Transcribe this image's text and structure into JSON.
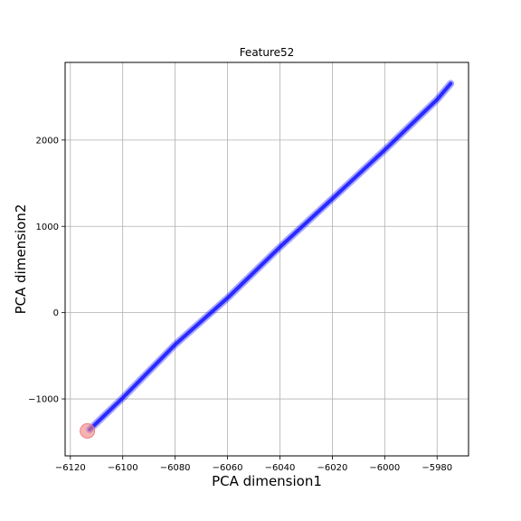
{
  "chart_data": {
    "type": "line",
    "title": "Feature52",
    "xlabel": "PCA dimension1",
    "ylabel": "PCA dimension2",
    "xlim": [
      -6122,
      -5968
    ],
    "ylim": [
      -1660,
      2900
    ],
    "xticks": [
      -6120,
      -6100,
      -6080,
      -6060,
      -6040,
      -6020,
      -6000,
      -5980
    ],
    "xtick_labels": [
      "−6120",
      "−6100",
      "−6080",
      "−6060",
      "−6040",
      "−6020",
      "−6000",
      "−5980"
    ],
    "yticks": [
      -1000,
      0,
      1000,
      2000
    ],
    "ytick_labels": [
      "−1000",
      "0",
      "1000",
      "2000"
    ],
    "grid": true,
    "series": [
      {
        "x": [
          -6112.6,
          -6100,
          -6080,
          -6060,
          -6040,
          -6020,
          -6000,
          -5980,
          -5974.8
        ],
        "y": [
          -1355,
          -988,
          -370,
          170,
          760,
          1320,
          1885,
          2470,
          2655
        ],
        "color": "#0000ff"
      }
    ],
    "start_marker": {
      "x": -6113.5,
      "y": -1370,
      "color": "#f08080"
    }
  }
}
